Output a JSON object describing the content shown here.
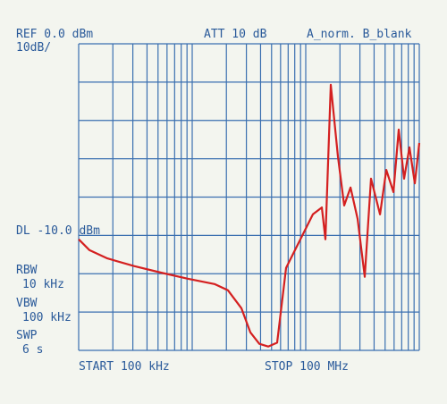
{
  "chart_data": {
    "type": "line",
    "labels": {
      "ref": "REF 0.0 dBm",
      "scale": "10dB/",
      "att": "ATT 10 dB",
      "trace_mode": "A_norm. B_blank",
      "display_line": "DL -10.0 dBm",
      "rbw": "RBW",
      "rbw_value": "10 kHz",
      "vbw": "VBW",
      "vbw_value": "100 kHz",
      "swp": "SWP",
      "swp_value": "6 s",
      "start": "START 100 kHz",
      "stop": "STOP 100 MHz"
    },
    "x": [
      100000,
      124000,
      179000,
      308000,
      530000,
      914000,
      1570000,
      2060000,
      2710000,
      3250000,
      3900000,
      4670000,
      5600000,
      6710000,
      8810000,
      11560000,
      13860000,
      14900000,
      16600000,
      19200000,
      21800000,
      24800000,
      28600000,
      33100000,
      37600000,
      45100000,
      51200000,
      59200000,
      65900000,
      73500000,
      81900000,
      91400000,
      100000000
    ],
    "series": [
      {
        "color": "#d42020",
        "values": [
          -51,
          -53.8,
          -56,
          -58,
          -59.7,
          -61.3,
          -62.7,
          -64.3,
          -69,
          -75.3,
          -78.3,
          -79,
          -78,
          -58.5,
          -51.5,
          -44.5,
          -42.7,
          -51,
          -10.7,
          -29.4,
          -42.2,
          -37.5,
          -45.7,
          -60.8,
          -35.2,
          -44.5,
          -32.9,
          -38.7,
          -22.4,
          -35.2,
          -27,
          -36.4,
          -25.9
        ]
      }
    ],
    "xlim": [
      100000,
      100000000
    ],
    "xscale": "log",
    "xticks": [
      100000,
      200000,
      300000,
      400000,
      500000,
      600000,
      700000,
      800000,
      900000,
      1000000,
      2000000,
      3000000,
      4000000,
      5000000,
      6000000,
      7000000,
      8000000,
      9000000,
      10000000,
      20000000,
      30000000,
      40000000,
      50000000,
      60000000,
      70000000,
      80000000,
      90000000,
      100000000
    ],
    "ylim": [
      -80,
      0
    ],
    "yticks": [
      -80,
      -70,
      -60,
      -50,
      -40,
      -30,
      -20,
      -10,
      0
    ],
    "grid": true,
    "grid_color": "#3a6fb0"
  }
}
